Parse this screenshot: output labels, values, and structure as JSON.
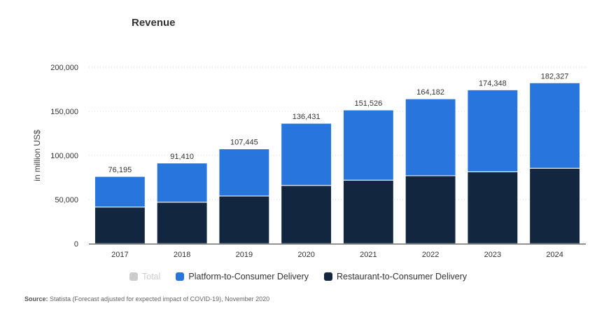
{
  "chart_data": {
    "type": "bar",
    "stacked": true,
    "title": "Revenue",
    "ylabel": "in million US$",
    "xlabel": "",
    "ylim": [
      0,
      200000
    ],
    "yticks": [
      0,
      50000,
      100000,
      150000,
      200000
    ],
    "ytick_labels": [
      "0",
      "50,000",
      "100,000",
      "150,000",
      "200,000"
    ],
    "grid": true,
    "categories": [
      "2017",
      "2018",
      "2019",
      "2020",
      "2021",
      "2022",
      "2023",
      "2024"
    ],
    "series": [
      {
        "name": "Restaurant-to-Consumer Delivery",
        "color": "#13263f",
        "values": [
          41500,
          47000,
          54000,
          66000,
          72000,
          77000,
          81500,
          85500
        ]
      },
      {
        "name": "Platform-to-Consumer Delivery",
        "color": "#2876dd",
        "values": [
          34695,
          44410,
          53445,
          70431,
          79526,
          87182,
          92848,
          96827
        ]
      }
    ],
    "totals": [
      76195,
      91410,
      107445,
      136431,
      151526,
      164182,
      174348,
      182327
    ],
    "total_labels": [
      "76,195",
      "91,410",
      "107,445",
      "136,431",
      "151,526",
      "164,182",
      "174,348",
      "182,327"
    ],
    "legend": [
      {
        "name": "Total",
        "color": "#cccccc",
        "disabled": true
      },
      {
        "name": "Platform-to-Consumer Delivery",
        "color": "#2876dd",
        "disabled": false
      },
      {
        "name": "Restaurant-to-Consumer Delivery",
        "color": "#13263f",
        "disabled": false
      }
    ],
    "legend_position": "bottom"
  },
  "source": {
    "label": "Source:",
    "text": "Statista (Forecast adjusted for expected impact of COVID-19), November 2020"
  }
}
